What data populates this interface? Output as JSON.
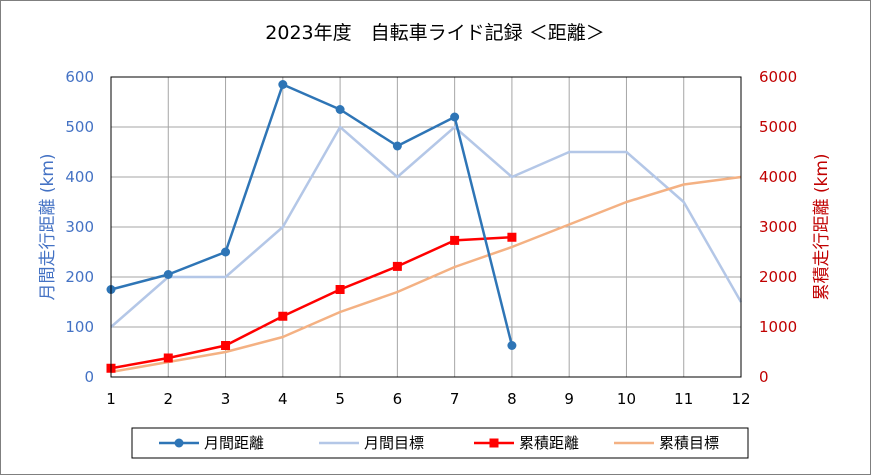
{
  "chart_data": {
    "type": "line",
    "title": "2023年度　自転車ライド記録 ＜距離＞",
    "x": [
      1,
      2,
      3,
      4,
      5,
      6,
      7,
      8,
      9,
      10,
      11,
      12
    ],
    "xlim": [
      1,
      12
    ],
    "y_left": {
      "label": "月間走行距離 (km)",
      "lim": [
        0,
        600
      ],
      "ticks": [
        0,
        100,
        200,
        300,
        400,
        500,
        600
      ]
    },
    "y_right": {
      "label": "累積走行距離 (km)",
      "lim": [
        0,
        6000
      ],
      "ticks": [
        0,
        1000,
        2000,
        3000,
        4000,
        5000,
        6000
      ]
    },
    "grid": true,
    "legend_position": "bottom",
    "series": [
      {
        "name": "月間距離",
        "axis": "left",
        "color": "#2e75b6",
        "marker": "circle",
        "values": [
          175,
          205,
          250,
          585,
          535,
          462,
          520,
          63,
          null,
          null,
          null,
          null
        ]
      },
      {
        "name": "月間目標",
        "axis": "left",
        "color": "#b4c7e7",
        "marker": "none",
        "values": [
          100,
          200,
          200,
          300,
          500,
          400,
          500,
          400,
          450,
          450,
          350,
          150
        ]
      },
      {
        "name": "累積距離",
        "axis": "right",
        "color": "#ff0000",
        "marker": "square",
        "values": [
          175,
          380,
          630,
          1215,
          1750,
          2212,
          2732,
          2795,
          null,
          null,
          null,
          null
        ]
      },
      {
        "name": "累積目標",
        "axis": "right",
        "color": "#f4b183",
        "marker": "none",
        "values": [
          100,
          300,
          500,
          800,
          1300,
          1700,
          2200,
          2600,
          3050,
          3500,
          3850,
          4000
        ]
      }
    ]
  }
}
